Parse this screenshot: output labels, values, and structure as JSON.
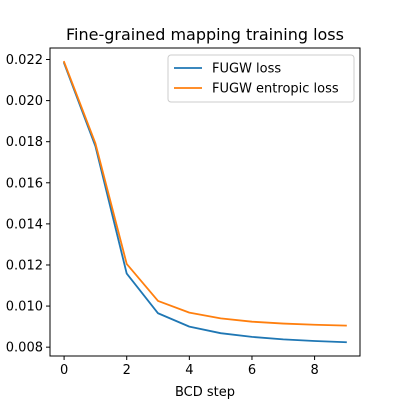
{
  "chart_data": {
    "type": "line",
    "title": "Fine-grained mapping training loss",
    "xlabel": "BCD step",
    "ylabel": "",
    "xlim": [
      -0.45,
      9.45
    ],
    "ylim": [
      0.00757,
      0.02256
    ],
    "x_ticks": [
      0,
      2,
      4,
      6,
      8
    ],
    "x_tick_labels": [
      "0",
      "2",
      "4",
      "6",
      "8"
    ],
    "y_ticks": [
      0.008,
      0.01,
      0.012,
      0.014,
      0.016,
      0.018,
      0.02,
      0.022
    ],
    "y_tick_labels": [
      "0.008",
      "0.010",
      "0.012",
      "0.014",
      "0.016",
      "0.018",
      "0.020",
      "0.022"
    ],
    "grid": false,
    "legend_position": "top-right",
    "x": [
      0,
      1,
      2,
      3,
      4,
      5,
      6,
      7,
      8,
      9
    ],
    "series": [
      {
        "name": "FUGW loss",
        "color": "#1f77b4",
        "values": [
          0.02182,
          0.01778,
          0.01158,
          0.00965,
          0.009,
          0.00868,
          0.0085,
          0.00838,
          0.0083,
          0.00824
        ]
      },
      {
        "name": "FUGW entropic loss",
        "color": "#ff7f0e",
        "values": [
          0.02188,
          0.01792,
          0.01205,
          0.01025,
          0.00968,
          0.0094,
          0.00924,
          0.00915,
          0.00909,
          0.00905
        ]
      }
    ]
  }
}
